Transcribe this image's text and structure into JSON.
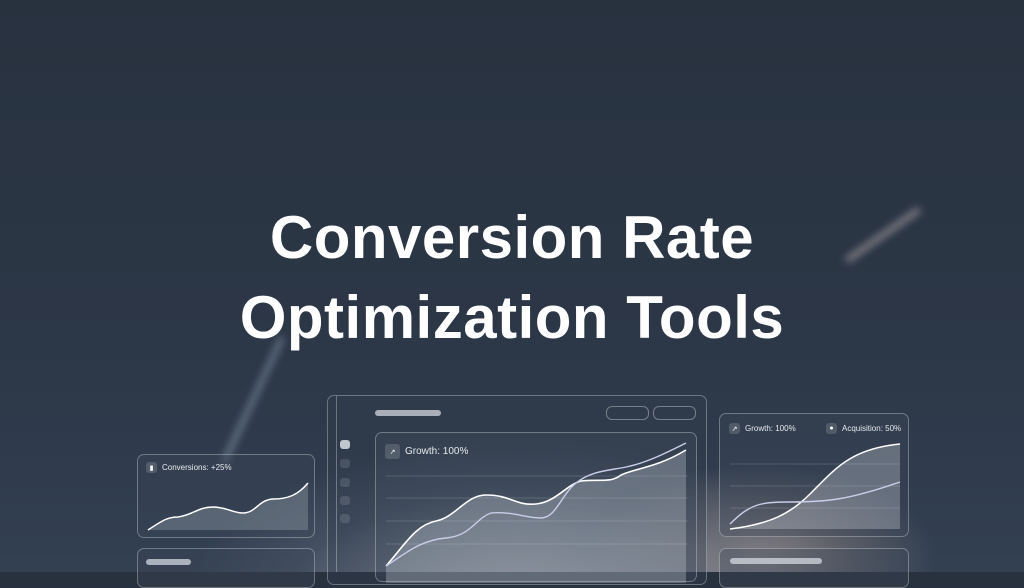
{
  "hero": {
    "title_line1": "Conversion Rate",
    "title_line2": "Optimization Tools"
  },
  "conversions_card": {
    "label": "Conversions: +25%",
    "icon": "bar-chart-icon"
  },
  "growth_card": {
    "label": "Growth: 100%",
    "icon": "trending-up-icon"
  },
  "side_card": {
    "growth_label": "Growth: 100%",
    "acquisition_label": "Acquisition: 50%",
    "growth_icon": "trending-up-icon",
    "acquisition_icon": "user-icon"
  },
  "colors": {
    "background": "#2b3545",
    "text": "#ffffff",
    "accent_line": "#c9cde8"
  }
}
